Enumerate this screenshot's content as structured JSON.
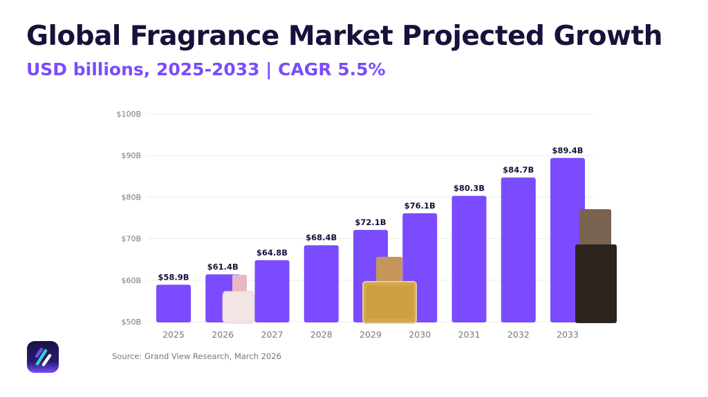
{
  "header": {
    "title": "Global Fragrance Market Projected Growth",
    "subtitle": "USD billions, 2025-2033 | CAGR 5.5%"
  },
  "footer": {
    "source": "Source: Grand View Research, March 2026"
  },
  "colors": {
    "bar": "#7b4bff",
    "title": "#16123a",
    "subtitle": "#7b4bff",
    "label": "#16123a",
    "axis_text": "#777777",
    "grid": "#ececf0"
  },
  "chart_data": {
    "type": "bar",
    "title": "",
    "xlabel": "",
    "ylabel": "",
    "categories": [
      "2025",
      "2026",
      "2027",
      "2028",
      "2029",
      "2030",
      "2031",
      "2032",
      "2033"
    ],
    "values": [
      58.9,
      61.4,
      64.8,
      68.4,
      72.1,
      76.1,
      80.3,
      84.7,
      89.4
    ],
    "data_labels": [
      "$58.9B",
      "$61.4B",
      "$64.8B",
      "$68.4B",
      "$72.1B",
      "$76.1B",
      "$80.3B",
      "$84.7B",
      "$89.4B"
    ],
    "ylim": [
      50,
      100
    ],
    "yticks": [
      50,
      60,
      70,
      80,
      90,
      100
    ],
    "ytick_labels": [
      "$50B",
      "$60B",
      "$70B",
      "$80B",
      "$90B",
      "$100B"
    ],
    "grid": true,
    "legend": "none"
  },
  "decorations": [
    "pink-perfume-bottle",
    "gold-perfume-bottle",
    "dark-perfume-bottle",
    "brand-logo"
  ]
}
